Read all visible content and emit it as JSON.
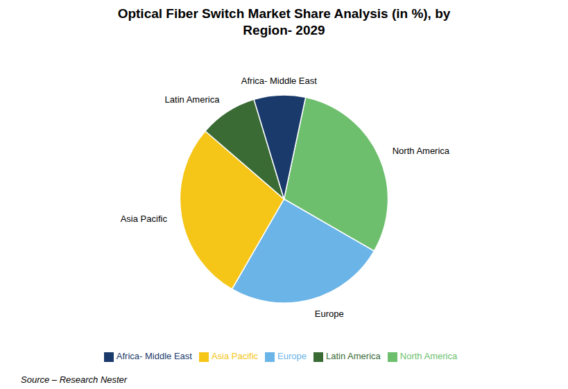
{
  "chart_data": {
    "type": "pie",
    "title": "Optical Fiber Switch Market Share Analysis (in %), by\nRegion- 2029",
    "categories": [
      "North America",
      "Europe",
      "Asia Pacific",
      "Latin America",
      "Africa- Middle East"
    ],
    "values": [
      30,
      25,
      28,
      9,
      8
    ],
    "colors": [
      "#6dbf6d",
      "#6ab4e8",
      "#f5c518",
      "#3a6b35",
      "#1a3a6b"
    ],
    "legend": "bottom",
    "annotations": [
      "Source – Research Nester"
    ]
  }
}
